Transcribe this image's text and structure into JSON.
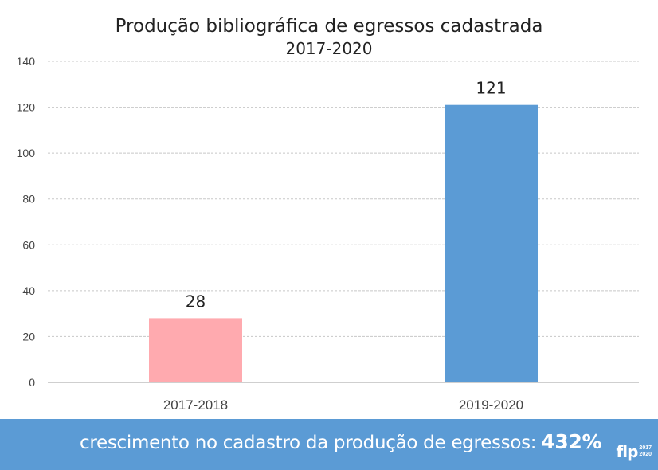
{
  "chart_data": {
    "type": "bar",
    "title": "Produção bibliográfica de egressos cadastrada",
    "subtitle": "2017-2020",
    "categories": [
      "2017-2018",
      "2019-2020"
    ],
    "values": [
      28,
      121
    ],
    "colors": [
      "#ffaaaf",
      "#5b9bd5"
    ],
    "ylim": [
      0,
      140
    ],
    "yticks": [
      0,
      20,
      40,
      60,
      80,
      100,
      120,
      140
    ],
    "grid": true,
    "data_labels": [
      "28",
      "121"
    ]
  },
  "footer": {
    "text": "crescimento no cadastro da produção de egressos:",
    "value": "432%",
    "background": "#5b9bd5"
  },
  "logo": {
    "mark": "flp",
    "year_top": "2017",
    "year_bottom": "2020"
  }
}
